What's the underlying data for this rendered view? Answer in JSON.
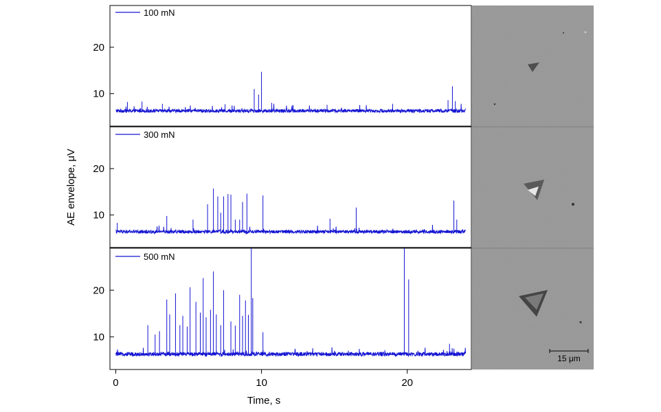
{
  "chart_data": {
    "type": "line",
    "ylabel": "AE envelope, μV",
    "xlabel": "Time, s",
    "xlim": [
      -0.4,
      24.4
    ],
    "x_ticks": [
      0,
      10,
      20
    ],
    "color": "#1414d2",
    "grid": false,
    "legend_placement": "top-left",
    "panels": [
      {
        "name": "100 mN",
        "ylim": [
          3,
          29
        ],
        "y_ticks": [
          10,
          20
        ],
        "baseline": 6.3,
        "noise": 0.6,
        "peaks": [
          {
            "x": 0.8,
            "y": 8.2
          },
          {
            "x": 1.8,
            "y": 8.3
          },
          {
            "x": 3.2,
            "y": 7.8
          },
          {
            "x": 7.5,
            "y": 7.7
          },
          {
            "x": 9.5,
            "y": 11.0
          },
          {
            "x": 9.8,
            "y": 9.8
          },
          {
            "x": 10.0,
            "y": 14.7
          },
          {
            "x": 10.7,
            "y": 8.0
          },
          {
            "x": 14.5,
            "y": 7.6
          },
          {
            "x": 19.0,
            "y": 7.8
          },
          {
            "x": 22.8,
            "y": 8.6
          },
          {
            "x": 23.1,
            "y": 11.6
          },
          {
            "x": 23.3,
            "y": 8.4
          }
        ]
      },
      {
        "name": "300 mN",
        "ylim": [
          3,
          29
        ],
        "y_ticks": [
          10,
          20
        ],
        "baseline": 6.4,
        "noise": 0.6,
        "peaks": [
          {
            "x": 0.1,
            "y": 8.3
          },
          {
            "x": 3.5,
            "y": 9.8
          },
          {
            "x": 5.3,
            "y": 9.0
          },
          {
            "x": 6.3,
            "y": 12.3
          },
          {
            "x": 6.7,
            "y": 15.7
          },
          {
            "x": 7.0,
            "y": 14.0
          },
          {
            "x": 7.2,
            "y": 10.5
          },
          {
            "x": 7.4,
            "y": 14.0
          },
          {
            "x": 7.7,
            "y": 14.5
          },
          {
            "x": 7.9,
            "y": 14.4
          },
          {
            "x": 8.2,
            "y": 9.0
          },
          {
            "x": 8.5,
            "y": 9.0
          },
          {
            "x": 8.7,
            "y": 12.8
          },
          {
            "x": 9.0,
            "y": 14.6
          },
          {
            "x": 10.1,
            "y": 14.2
          },
          {
            "x": 14.7,
            "y": 9.2
          },
          {
            "x": 16.5,
            "y": 11.6
          },
          {
            "x": 23.2,
            "y": 13.1
          },
          {
            "x": 23.4,
            "y": 9.0
          }
        ]
      },
      {
        "name": "500 mN",
        "ylim": [
          3,
          29
        ],
        "y_ticks": [
          10,
          20
        ],
        "baseline": 6.3,
        "noise": 0.7,
        "peaks": [
          {
            "x": 2.2,
            "y": 12.5
          },
          {
            "x": 2.7,
            "y": 10.5
          },
          {
            "x": 3.0,
            "y": 11.2
          },
          {
            "x": 3.5,
            "y": 18.0
          },
          {
            "x": 3.7,
            "y": 14.8
          },
          {
            "x": 4.1,
            "y": 19.3
          },
          {
            "x": 4.4,
            "y": 12.5
          },
          {
            "x": 4.6,
            "y": 14.5
          },
          {
            "x": 4.9,
            "y": 12.2
          },
          {
            "x": 5.1,
            "y": 20.6
          },
          {
            "x": 5.5,
            "y": 17.5
          },
          {
            "x": 5.8,
            "y": 15.2
          },
          {
            "x": 6.0,
            "y": 22.6
          },
          {
            "x": 6.2,
            "y": 14.2
          },
          {
            "x": 6.5,
            "y": 15.8
          },
          {
            "x": 6.7,
            "y": 24.0
          },
          {
            "x": 6.9,
            "y": 14.8
          },
          {
            "x": 7.2,
            "y": 12.5
          },
          {
            "x": 7.4,
            "y": 20.0
          },
          {
            "x": 7.9,
            "y": 13.3
          },
          {
            "x": 8.2,
            "y": 12.4
          },
          {
            "x": 8.5,
            "y": 19.0
          },
          {
            "x": 8.7,
            "y": 14.5
          },
          {
            "x": 8.9,
            "y": 17.8
          },
          {
            "x": 9.1,
            "y": 14.7
          },
          {
            "x": 9.3,
            "y": 29.0
          },
          {
            "x": 9.4,
            "y": 18.3
          },
          {
            "x": 10.1,
            "y": 11.0
          },
          {
            "x": 19.8,
            "y": 29.0
          },
          {
            "x": 20.1,
            "y": 22.3
          },
          {
            "x": 22.9,
            "y": 8.5
          }
        ]
      }
    ]
  },
  "micrograph": {
    "scale_bar_label": "15 μm"
  }
}
